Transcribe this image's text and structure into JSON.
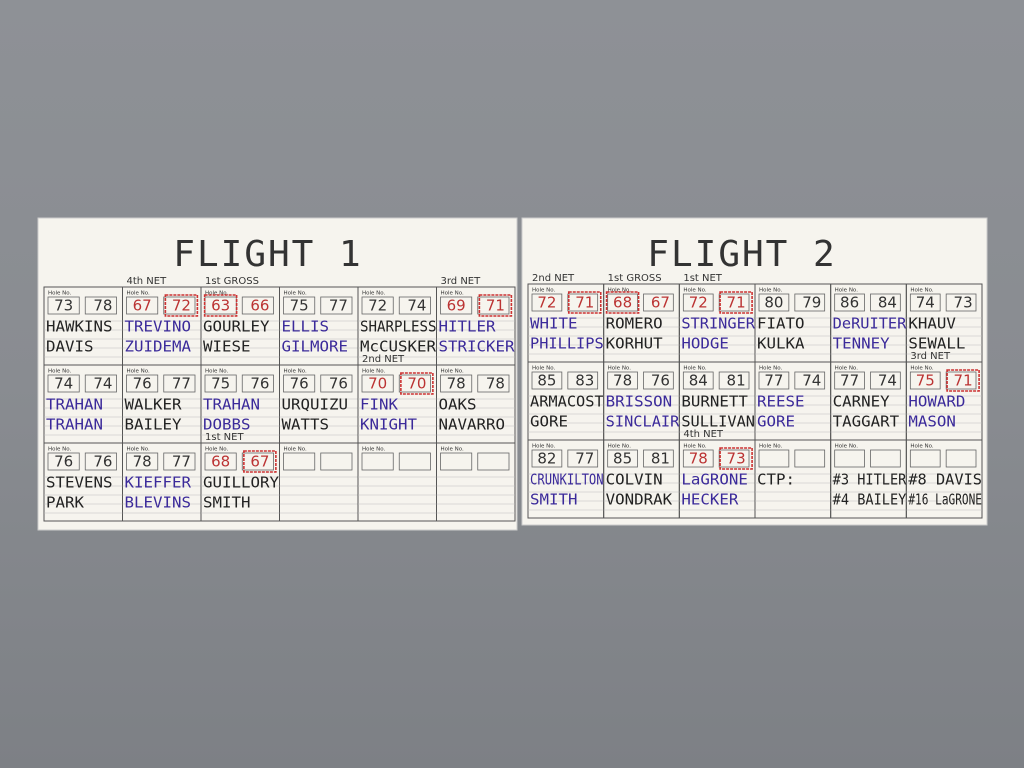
{
  "boards": [
    {
      "title": "FLIGHT 1",
      "rows": [
        [
          {
            "hole_label": "Hole No.",
            "scores": [
              73,
              78
            ],
            "names": [
              "HAWKINS",
              "DAVIS"
            ],
            "ink": "#222"
          },
          {
            "hole_label": "Hole No.",
            "scores": [
              67,
              72
            ],
            "boxed": 1,
            "annotation": "4th NET",
            "names": [
              "TREVINO",
              "ZUIDEMA"
            ],
            "ink": "#3b2a9a"
          },
          {
            "hole_label": "Hole No.",
            "scores": [
              63,
              66
            ],
            "boxed": 0,
            "annotation": "1st GROSS",
            "names": [
              "GOURLEY",
              "WIESE"
            ],
            "ink": "#222"
          },
          {
            "hole_label": "Hole No.",
            "scores": [
              75,
              77
            ],
            "names": [
              "ELLIS",
              "GILMORE"
            ],
            "ink": "#3b2a9a"
          },
          {
            "hole_label": "Hole No.",
            "scores": [
              72,
              74
            ],
            "names": [
              "SHARPLESS",
              "McCUSKER"
            ],
            "ink": "#222"
          },
          {
            "hole_label": "Hole No.",
            "scores": [
              69,
              71
            ],
            "boxed": 1,
            "annotation": "3rd NET",
            "names": [
              "HITLER",
              "STRICKER"
            ],
            "ink": "#3b2a9a"
          }
        ],
        [
          {
            "hole_label": "Hole No.",
            "scores": [
              74,
              74
            ],
            "names": [
              "TRAHAN",
              "TRAHAN"
            ],
            "ink": "#3b2a9a"
          },
          {
            "hole_label": "Hole No.",
            "scores": [
              76,
              77
            ],
            "names": [
              "WALKER",
              "BAILEY"
            ],
            "ink": "#222"
          },
          {
            "hole_label": "Hole No.",
            "scores": [
              75,
              76
            ],
            "names": [
              "TRAHAN",
              "DOBBS"
            ],
            "ink": "#3b2a9a"
          },
          {
            "hole_label": "Hole No.",
            "scores": [
              76,
              76
            ],
            "names": [
              "URQUIZU",
              "WATTS"
            ],
            "ink": "#222"
          },
          {
            "hole_label": "Hole No.",
            "scores": [
              70,
              70
            ],
            "boxed": 1,
            "annotation": "2nd NET",
            "names": [
              "FINK",
              "KNIGHT"
            ],
            "ink": "#3b2a9a"
          },
          {
            "hole_label": "Hole No.",
            "scores": [
              78,
              78
            ],
            "names": [
              "OAKS",
              "NAVARRO"
            ],
            "ink": "#222"
          }
        ],
        [
          {
            "hole_label": "Hole No.",
            "scores": [
              76,
              76
            ],
            "names": [
              "STEVENS",
              "PARK"
            ],
            "ink": "#222"
          },
          {
            "hole_label": "Hole No.",
            "scores": [
              78,
              77
            ],
            "names": [
              "KIEFFER",
              "BLEVINS"
            ],
            "ink": "#3b2a9a"
          },
          {
            "hole_label": "Hole No.",
            "scores": [
              68,
              67
            ],
            "boxed": 1,
            "annotation": "1st NET",
            "names": [
              "GUILLORY",
              "SMITH"
            ],
            "ink": "#222"
          },
          {
            "hole_label": "Hole No."
          },
          {
            "hole_label": "Hole No."
          },
          {
            "hole_label": "Hole No."
          }
        ]
      ]
    },
    {
      "title": "FLIGHT 2",
      "rows": [
        [
          {
            "hole_label": "Hole No.",
            "scores": [
              72,
              71
            ],
            "boxed": 1,
            "annotation": "2nd NET",
            "names": [
              "WHITE",
              "PHILLIPS"
            ],
            "ink": "#3b2a9a"
          },
          {
            "hole_label": "Hole No.",
            "scores": [
              68,
              67
            ],
            "boxed": 0,
            "annotation": "1st GROSS",
            "names": [
              "ROMERO",
              "KORHUT"
            ],
            "ink": "#222"
          },
          {
            "hole_label": "Hole No.",
            "scores": [
              72,
              71
            ],
            "boxed": 1,
            "annotation": "1st NET",
            "names": [
              "STRINGER",
              "HODGE"
            ],
            "ink": "#3b2a9a"
          },
          {
            "hole_label": "Hole No.",
            "scores": [
              80,
              79
            ],
            "names": [
              "FIATO",
              "KULKA"
            ],
            "ink": "#222"
          },
          {
            "hole_label": "Hole No.",
            "scores": [
              86,
              84
            ],
            "names": [
              "DeRUITER",
              "TENNEY"
            ],
            "ink": "#3b2a9a"
          },
          {
            "hole_label": "Hole No.",
            "scores": [
              74,
              73
            ],
            "names": [
              "KHAUV",
              "SEWALL"
            ],
            "ink": "#222"
          }
        ],
        [
          {
            "hole_label": "Hole No.",
            "scores": [
              85,
              83
            ],
            "names": [
              "ARMACOST",
              "GORE"
            ],
            "ink": "#222"
          },
          {
            "hole_label": "Hole No.",
            "scores": [
              78,
              76
            ],
            "names": [
              "BRISSON",
              "SINCLAIR"
            ],
            "ink": "#3b2a9a"
          },
          {
            "hole_label": "Hole No.",
            "scores": [
              84,
              81
            ],
            "names": [
              "BURNETT",
              "SULLIVAN"
            ],
            "ink": "#222"
          },
          {
            "hole_label": "Hole No.",
            "scores": [
              77,
              74
            ],
            "names": [
              "REESE",
              "GORE"
            ],
            "ink": "#3b2a9a"
          },
          {
            "hole_label": "Hole No.",
            "scores": [
              77,
              74
            ],
            "names": [
              "CARNEY",
              "TAGGART"
            ],
            "ink": "#222"
          },
          {
            "hole_label": "Hole No.",
            "scores": [
              75,
              71
            ],
            "boxed": 1,
            "annotation": "3rd NET",
            "names": [
              "HOWARD",
              "MASON"
            ],
            "ink": "#3b2a9a"
          }
        ],
        [
          {
            "hole_label": "Hole No.",
            "scores": [
              82,
              77
            ],
            "names": [
              "CRUNKILTON",
              "SMITH"
            ],
            "ink": "#3b2a9a"
          },
          {
            "hole_label": "Hole No.",
            "scores": [
              85,
              81
            ],
            "names": [
              "COLVIN",
              "VONDRAK"
            ],
            "ink": "#222"
          },
          {
            "hole_label": "Hole No.",
            "scores": [
              78,
              73
            ],
            "boxed": 1,
            "annotation": "4th NET",
            "names": [
              "LaGRONE",
              "HECKER"
            ],
            "ink": "#3b2a9a"
          },
          {
            "hole_label": "Hole No.",
            "names": [
              "CTP:"
            ],
            "ink": "#222"
          },
          {
            "hole_label": "Hole No.",
            "names": [
              "#3 HITLER",
              "#4 BAILEY"
            ],
            "ink": "#222"
          },
          {
            "hole_label": "Hole No.",
            "names": [
              "#8 DAVIS",
              "#16 LaGRONE"
            ],
            "ink": "#222"
          }
        ]
      ]
    }
  ]
}
